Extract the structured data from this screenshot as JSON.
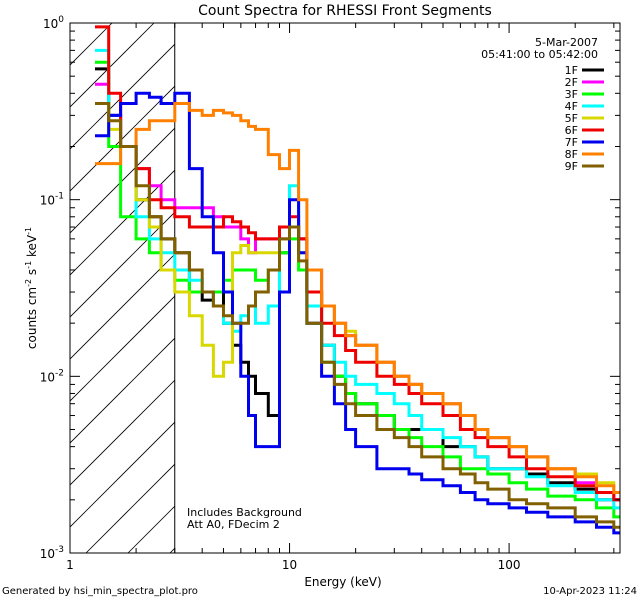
{
  "chart_data": {
    "type": "line",
    "title": "Count Spectra for RHESSI Front Segments",
    "xlabel": "Energy (keV)",
    "ylabel_base": "counts cm",
    "ylabel_exp1": "-2",
    "ylabel_mid": " s",
    "ylabel_exp2": "-1",
    "ylabel_end": " keV",
    "ylabel_exp3": "-1",
    "x_scale": "log",
    "y_scale": "log",
    "xlim": [
      1.0,
      320
    ],
    "ylim": [
      0.001,
      1.0
    ],
    "x_ticks": [
      {
        "value": 1,
        "label": "1"
      },
      {
        "value": 10,
        "label": "10"
      },
      {
        "value": 100,
        "label": "100"
      }
    ],
    "y_ticks": [
      {
        "value": 1,
        "base": "10",
        "exp": "0"
      },
      {
        "value": 0.1,
        "base": "10",
        "exp": "-1"
      },
      {
        "value": 0.01,
        "base": "10",
        "exp": "-2"
      },
      {
        "value": 0.001,
        "base": "10",
        "exp": "-3"
      }
    ],
    "hatch_region": {
      "x_from": 1.0,
      "x_to": 3.0
    },
    "date": "5-Mar-2007",
    "time_range": "05:41:00 to 05:42:00",
    "annotations": [
      "Includes Background",
      "Att A0, FDecim 2"
    ],
    "legend_position": "top-right",
    "series": [
      {
        "name": "1F",
        "color": "#000000",
        "x": [
          1.3,
          1.5,
          1.7,
          2.0,
          2.3,
          2.6,
          3.0,
          3.5,
          4,
          4.5,
          5,
          5.5,
          6,
          6.5,
          7,
          8,
          9,
          10,
          11,
          12,
          14,
          16,
          18,
          20,
          25,
          30,
          35,
          40,
          50,
          60,
          70,
          80,
          100,
          120,
          150,
          200,
          250,
          300
        ],
        "y": [
          0.55,
          0.3,
          0.2,
          0.1,
          0.08,
          0.06,
          0.05,
          0.03,
          0.027,
          0.03,
          0.02,
          0.015,
          0.012,
          0.01,
          0.008,
          0.006,
          0.05,
          0.07,
          0.06,
          0.03,
          0.015,
          0.01,
          0.008,
          0.007,
          0.006,
          0.005,
          0.005,
          0.005,
          0.004,
          0.004,
          0.0035,
          0.003,
          0.003,
          0.0028,
          0.0025,
          0.0023,
          0.002,
          0.002
        ]
      },
      {
        "name": "2F",
        "color": "#ff00ff",
        "x": [
          1.3,
          1.5,
          1.7,
          2.0,
          2.3,
          2.6,
          3.0,
          3.5,
          4,
          4.5,
          5,
          5.5,
          6,
          6.5,
          7,
          8,
          9,
          10,
          11,
          12,
          14,
          16,
          18,
          20,
          25,
          30,
          35,
          40,
          50,
          60,
          70,
          80,
          100,
          120,
          150,
          200,
          250,
          300
        ],
        "y": [
          0.45,
          0.3,
          0.2,
          0.15,
          0.12,
          0.1,
          0.09,
          0.09,
          0.09,
          0.08,
          0.07,
          0.07,
          0.06,
          0.05,
          0.06,
          0.06,
          0.06,
          0.07,
          0.06,
          0.04,
          0.025,
          0.02,
          0.017,
          0.015,
          0.012,
          0.01,
          0.009,
          0.008,
          0.007,
          0.006,
          0.005,
          0.0045,
          0.004,
          0.0035,
          0.003,
          0.0025,
          0.0022,
          0.002
        ]
      },
      {
        "name": "3F",
        "color": "#00ff00",
        "x": [
          1.3,
          1.5,
          1.7,
          2.0,
          2.3,
          2.6,
          3.0,
          3.5,
          4,
          4.5,
          5,
          5.5,
          6,
          6.5,
          7,
          8,
          9,
          10,
          11,
          12,
          14,
          16,
          18,
          20,
          25,
          30,
          35,
          40,
          50,
          60,
          70,
          80,
          100,
          120,
          150,
          200,
          250,
          300
        ],
        "y": [
          0.6,
          0.2,
          0.08,
          0.06,
          0.05,
          0.04,
          0.035,
          0.03,
          0.03,
          0.03,
          0.035,
          0.04,
          0.04,
          0.04,
          0.035,
          0.04,
          0.05,
          0.06,
          0.04,
          0.02,
          0.012,
          0.01,
          0.008,
          0.007,
          0.006,
          0.005,
          0.0045,
          0.004,
          0.0035,
          0.003,
          0.003,
          0.0028,
          0.0025,
          0.0023,
          0.0021,
          0.002,
          0.0018,
          0.0016
        ]
      },
      {
        "name": "4F",
        "color": "#00ffff",
        "x": [
          1.3,
          1.5,
          1.7,
          2.0,
          2.3,
          2.6,
          3.0,
          3.5,
          4,
          4.5,
          5,
          5.5,
          6,
          6.5,
          7,
          8,
          9,
          10,
          11,
          12,
          14,
          16,
          18,
          20,
          25,
          30,
          35,
          40,
          50,
          60,
          70,
          80,
          100,
          120,
          150,
          200,
          250,
          300
        ],
        "y": [
          0.7,
          0.3,
          0.2,
          0.08,
          0.06,
          0.05,
          0.04,
          0.035,
          0.03,
          0.025,
          0.02,
          0.018,
          0.022,
          0.025,
          0.02,
          0.025,
          0.07,
          0.12,
          0.05,
          0.025,
          0.015,
          0.012,
          0.01,
          0.009,
          0.008,
          0.007,
          0.006,
          0.005,
          0.0045,
          0.004,
          0.0035,
          0.003,
          0.003,
          0.0027,
          0.0024,
          0.0022,
          0.002,
          0.0018
        ]
      },
      {
        "name": "5F",
        "color": "#d8d800",
        "x": [
          1.3,
          1.5,
          1.7,
          2.0,
          2.3,
          2.6,
          3.0,
          3.5,
          4,
          4.5,
          5,
          5.5,
          6,
          6.5,
          7,
          8,
          9,
          10,
          11,
          12,
          14,
          16,
          18,
          20,
          25,
          30,
          35,
          40,
          50,
          60,
          70,
          80,
          100,
          120,
          150,
          200,
          250,
          300
        ],
        "y": [
          0.35,
          0.25,
          0.2,
          0.1,
          0.07,
          0.04,
          0.03,
          0.022,
          0.015,
          0.01,
          0.012,
          0.05,
          0.055,
          0.05,
          0.05,
          0.05,
          0.06,
          0.07,
          0.05,
          0.03,
          0.025,
          0.02,
          0.018,
          0.015,
          0.012,
          0.01,
          0.009,
          0.008,
          0.007,
          0.006,
          0.005,
          0.0045,
          0.004,
          0.0035,
          0.003,
          0.0028,
          0.0025,
          0.0022
        ]
      },
      {
        "name": "6F",
        "color": "#ee0000",
        "x": [
          1.3,
          1.5,
          1.7,
          2.0,
          2.3,
          2.6,
          3.0,
          3.5,
          4,
          4.5,
          5,
          5.5,
          6,
          6.5,
          7,
          8,
          9,
          10,
          11,
          12,
          14,
          16,
          18,
          20,
          25,
          30,
          35,
          40,
          50,
          60,
          70,
          80,
          100,
          120,
          150,
          200,
          250,
          300
        ],
        "y": [
          0.95,
          0.4,
          0.2,
          0.15,
          0.1,
          0.09,
          0.08,
          0.07,
          0.07,
          0.07,
          0.08,
          0.075,
          0.07,
          0.065,
          0.06,
          0.06,
          0.07,
          0.08,
          0.06,
          0.03,
          0.02,
          0.017,
          0.014,
          0.012,
          0.01,
          0.009,
          0.008,
          0.007,
          0.006,
          0.005,
          0.0045,
          0.004,
          0.0035,
          0.003,
          0.0027,
          0.0024,
          0.0022,
          0.002
        ]
      },
      {
        "name": "7F",
        "color": "#0000ee",
        "x": [
          1.3,
          1.5,
          1.7,
          2.0,
          2.3,
          2.6,
          3.0,
          3.5,
          4,
          4.5,
          5,
          5.5,
          6,
          6.5,
          7,
          8,
          9,
          10,
          11,
          12,
          14,
          16,
          18,
          20,
          25,
          30,
          35,
          40,
          50,
          60,
          70,
          80,
          100,
          120,
          150,
          200,
          250,
          300
        ],
        "y": [
          0.23,
          0.3,
          0.35,
          0.4,
          0.38,
          0.35,
          0.4,
          0.15,
          0.08,
          0.05,
          0.03,
          0.02,
          0.01,
          0.006,
          0.004,
          0.004,
          0.03,
          0.1,
          0.05,
          0.02,
          0.01,
          0.007,
          0.005,
          0.004,
          0.003,
          0.003,
          0.0028,
          0.0026,
          0.0024,
          0.0022,
          0.002,
          0.0019,
          0.0018,
          0.0017,
          0.0016,
          0.0015,
          0.0014,
          0.0013
        ]
      },
      {
        "name": "8F",
        "color": "#ff8000",
        "x": [
          1.3,
          1.5,
          1.7,
          2.0,
          2.3,
          2.6,
          3.0,
          3.5,
          4,
          4.5,
          5,
          5.5,
          6,
          6.5,
          7,
          8,
          9,
          10,
          11,
          12,
          14,
          16,
          18,
          20,
          25,
          30,
          35,
          40,
          50,
          60,
          70,
          80,
          100,
          120,
          150,
          200,
          250,
          300
        ],
        "y": [
          0.16,
          0.16,
          0.2,
          0.25,
          0.28,
          0.28,
          0.35,
          0.32,
          0.3,
          0.32,
          0.31,
          0.3,
          0.28,
          0.26,
          0.25,
          0.18,
          0.15,
          0.19,
          0.1,
          0.04,
          0.025,
          0.02,
          0.017,
          0.015,
          0.012,
          0.01,
          0.009,
          0.008,
          0.007,
          0.006,
          0.005,
          0.0045,
          0.004,
          0.0035,
          0.003,
          0.0027,
          0.0024,
          0.0022
        ]
      },
      {
        "name": "9F",
        "color": "#806000",
        "x": [
          1.3,
          1.5,
          1.7,
          2.0,
          2.3,
          2.6,
          3.0,
          3.5,
          4,
          4.5,
          5,
          5.5,
          6,
          6.5,
          7,
          8,
          9,
          10,
          11,
          12,
          14,
          16,
          18,
          20,
          25,
          30,
          35,
          40,
          50,
          60,
          70,
          80,
          100,
          120,
          150,
          200,
          250,
          300
        ],
        "y": [
          0.35,
          0.28,
          0.2,
          0.12,
          0.08,
          0.06,
          0.05,
          0.04,
          0.03,
          0.025,
          0.022,
          0.02,
          0.02,
          0.025,
          0.03,
          0.04,
          0.06,
          0.07,
          0.045,
          0.02,
          0.012,
          0.009,
          0.007,
          0.006,
          0.005,
          0.0045,
          0.004,
          0.0035,
          0.003,
          0.0028,
          0.0025,
          0.0023,
          0.002,
          0.0019,
          0.0018,
          0.0016,
          0.0015,
          0.0014
        ]
      }
    ]
  },
  "footer": {
    "generated": "Generated by hsi_min_spectra_plot.pro",
    "timestamp": "10-Apr-2023 11:24"
  }
}
